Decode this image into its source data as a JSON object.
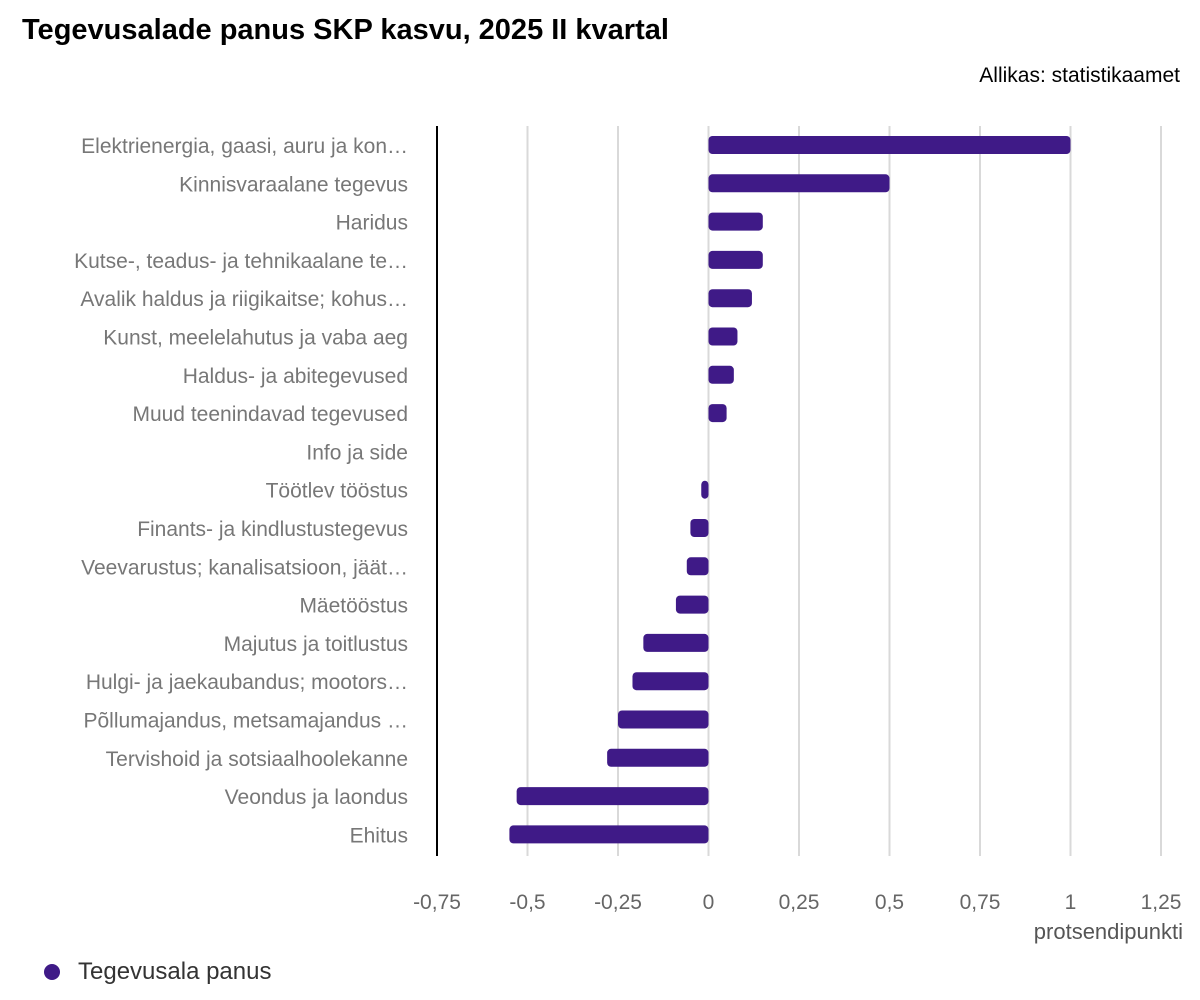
{
  "title": "Tegevusalade panus SKP kasvu, 2025 II kvartal",
  "source": "Allikas: statistikaamet",
  "chart_data": {
    "type": "bar",
    "orientation": "horizontal",
    "categories": [
      "Elektrienergia, gaasi, auru ja kon…",
      "Kinnisvaraalane tegevus",
      "Haridus",
      "Kutse-, teadus- ja tehnikaalane te…",
      "Avalik haldus ja riigikaitse; kohus…",
      "Kunst, meelelahutus ja vaba aeg",
      "Haldus- ja abitegevused",
      "Muud teenindavad tegevused",
      "Info ja side",
      "Töötlev tööstus",
      "Finants- ja kindlustustegevus",
      "Veevarustus; kanalisatsioon, jäät…",
      "Mäetööstus",
      "Majutus ja toitlustus",
      "Hulgi- ja jaekaubandus; mootors…",
      "Põllumajandus, metsamajandus …",
      "Tervishoid ja sotsiaalhoolekanne",
      "Veondus ja laondus",
      "Ehitus"
    ],
    "series": [
      {
        "name": "Tegevusala panus",
        "color": "#3f1a87",
        "values": [
          1.0,
          0.5,
          0.15,
          0.15,
          0.12,
          0.08,
          0.07,
          0.05,
          0.0,
          -0.02,
          -0.05,
          -0.06,
          -0.09,
          -0.18,
          -0.21,
          -0.25,
          -0.28,
          -0.53,
          -0.55
        ]
      }
    ],
    "xlim": [
      -0.75,
      1.25
    ],
    "xticks": [
      -0.75,
      -0.5,
      -0.25,
      0,
      0.25,
      0.5,
      0.75,
      1,
      1.25
    ],
    "xtick_labels": [
      "-0,75",
      "-0,5",
      "-0,25",
      "0",
      "0,25",
      "0,5",
      "0,75",
      "1",
      "1,25"
    ],
    "xlabel": "protsendipunkti",
    "grid": true,
    "legend_position": "bottom-left"
  },
  "legend": {
    "label": "Tegevusala panus",
    "color": "#3f1a87"
  }
}
